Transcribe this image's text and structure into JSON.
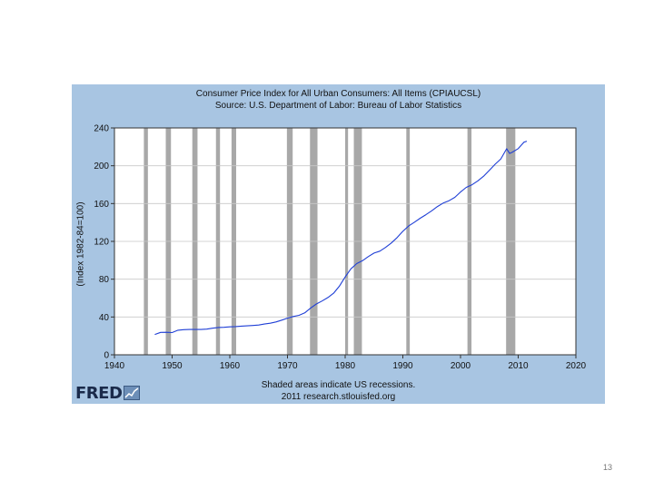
{
  "chart_data": {
    "type": "line",
    "title": "Consumer Price Index for All Urban Consumers: All Items (CPIAUCSL)",
    "subtitle": "Source: U.S. Department of Labor: Bureau of Labor Statistics",
    "xlabel": "",
    "ylabel": "(Index 1982-84=100)",
    "xlim": [
      1940,
      2020
    ],
    "ylim": [
      0,
      240
    ],
    "xticks": [
      1940,
      1950,
      1960,
      1970,
      1980,
      1990,
      2000,
      2010,
      2020
    ],
    "yticks": [
      0,
      40,
      80,
      120,
      160,
      200,
      240
    ],
    "grid": "horizontal",
    "series": [
      {
        "color": "#1f3fd6",
        "x": [
          1947,
          1948,
          1949,
          1950,
          1951,
          1952,
          1953,
          1954,
          1955,
          1956,
          1957,
          1958,
          1959,
          1960,
          1961,
          1962,
          1963,
          1964,
          1965,
          1966,
          1967,
          1968,
          1969,
          1970,
          1971,
          1972,
          1973,
          1974,
          1975,
          1976,
          1977,
          1978,
          1979,
          1980,
          1981,
          1982,
          1983,
          1984,
          1985,
          1986,
          1987,
          1988,
          1989,
          1990,
          1991,
          1992,
          1993,
          1994,
          1995,
          1996,
          1997,
          1998,
          1999,
          2000,
          2001,
          2002,
          2003,
          2004,
          2005,
          2006,
          2007,
          2008,
          2008.5,
          2009,
          2010,
          2011,
          2011.5
        ],
        "values": [
          21.5,
          23.7,
          23.8,
          23.5,
          26.0,
          26.6,
          26.8,
          26.9,
          26.8,
          27.2,
          28.1,
          28.9,
          29.1,
          29.6,
          29.9,
          30.3,
          30.6,
          31.0,
          31.5,
          32.5,
          33.4,
          34.8,
          36.7,
          38.8,
          40.5,
          41.8,
          44.4,
          49.3,
          53.8,
          56.9,
          60.6,
          65.2,
          72.6,
          82.4,
          90.9,
          96.5,
          99.6,
          103.9,
          107.6,
          109.6,
          113.6,
          118.3,
          124.0,
          130.7,
          136.2,
          140.3,
          144.5,
          148.2,
          152.4,
          156.9,
          160.5,
          163.0,
          166.6,
          172.2,
          177.1,
          179.9,
          184.0,
          188.9,
          195.3,
          201.6,
          207.3,
          218.0,
          213.0,
          214.5,
          218.1,
          224.9,
          226.0
        ]
      }
    ],
    "recessions": [
      [
        1945.1,
        1945.8
      ],
      [
        1948.9,
        1949.8
      ],
      [
        1953.5,
        1954.4
      ],
      [
        1957.6,
        1958.3
      ],
      [
        1960.3,
        1961.1
      ],
      [
        1969.9,
        1970.9
      ],
      [
        1973.9,
        1975.2
      ],
      [
        1980.0,
        1980.5
      ],
      [
        1981.5,
        1982.9
      ],
      [
        1990.6,
        1991.2
      ],
      [
        2001.2,
        2001.9
      ],
      [
        2007.9,
        2009.5
      ]
    ],
    "recession_color": "#a8a8a8"
  },
  "footer": {
    "note": "Shaded areas indicate US recessions.",
    "source": "2011 research.stlouisfed.org"
  },
  "logo": {
    "text": "FRED"
  },
  "page_number": "13",
  "colors": {
    "frame": "#a8c5e2",
    "plot_bg": "#ffffff",
    "line": "#1f3fd6"
  }
}
